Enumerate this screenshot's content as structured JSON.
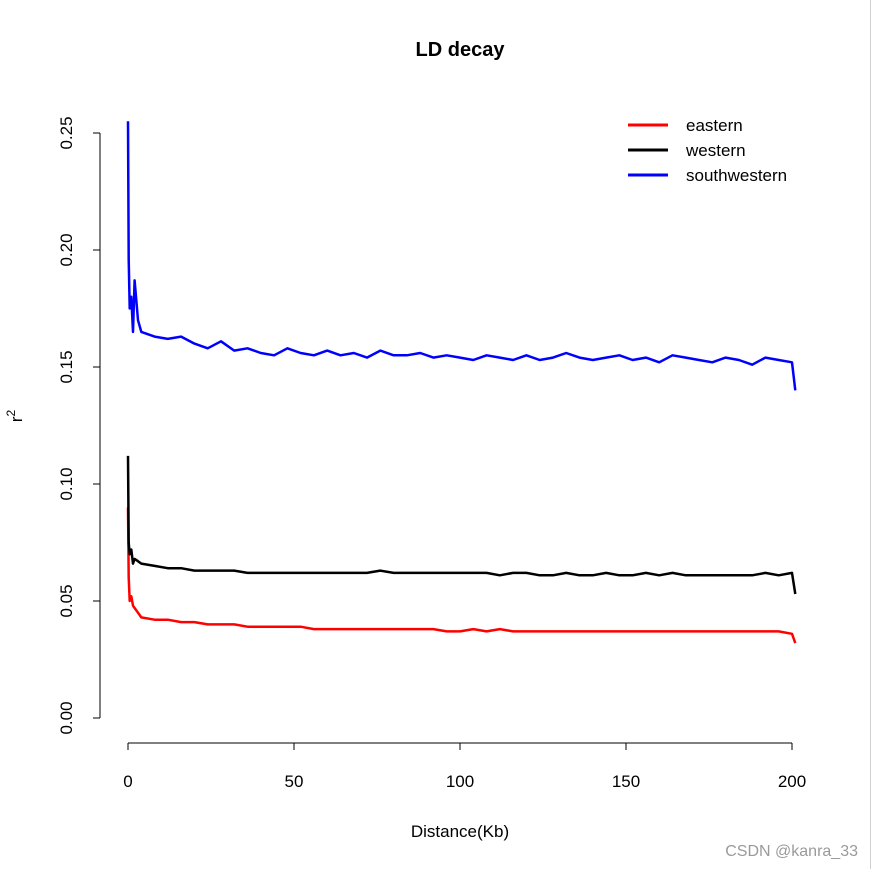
{
  "chart_data": {
    "type": "line",
    "title": "LD decay",
    "xlabel": "Distance(Kb)",
    "ylabel": "r2",
    "xlim": [
      0,
      200
    ],
    "ylim": [
      0,
      0.25
    ],
    "xticks": [
      "0",
      "50",
      "100",
      "150",
      "200"
    ],
    "yticks": [
      "0.00",
      "0.05",
      "0.10",
      "0.15",
      "0.20",
      "0.25"
    ],
    "grid": false,
    "legend_position": "top-right",
    "x": [
      0,
      0.2,
      0.5,
      1,
      1.5,
      2,
      3,
      4,
      8,
      12,
      16,
      20,
      24,
      28,
      32,
      36,
      40,
      44,
      48,
      52,
      56,
      60,
      64,
      68,
      72,
      76,
      80,
      84,
      88,
      92,
      96,
      100,
      104,
      108,
      112,
      116,
      120,
      124,
      128,
      132,
      136,
      140,
      144,
      148,
      152,
      156,
      160,
      164,
      168,
      172,
      176,
      180,
      184,
      188,
      192,
      196,
      200,
      201
    ],
    "series": [
      {
        "name": "eastern",
        "color": "#ff0000",
        "values": [
          0.09,
          0.06,
          0.05,
          0.052,
          0.048,
          0.047,
          0.045,
          0.043,
          0.042,
          0.042,
          0.041,
          0.041,
          0.04,
          0.04,
          0.04,
          0.039,
          0.039,
          0.039,
          0.039,
          0.039,
          0.038,
          0.038,
          0.038,
          0.038,
          0.038,
          0.038,
          0.038,
          0.038,
          0.038,
          0.038,
          0.037,
          0.037,
          0.038,
          0.037,
          0.038,
          0.037,
          0.037,
          0.037,
          0.037,
          0.037,
          0.037,
          0.037,
          0.037,
          0.037,
          0.037,
          0.037,
          0.037,
          0.037,
          0.037,
          0.037,
          0.037,
          0.037,
          0.037,
          0.037,
          0.037,
          0.037,
          0.036,
          0.032
        ]
      },
      {
        "name": "western",
        "color": "#000000",
        "values": [
          0.112,
          0.075,
          0.07,
          0.072,
          0.066,
          0.068,
          0.067,
          0.066,
          0.065,
          0.064,
          0.064,
          0.063,
          0.063,
          0.063,
          0.063,
          0.062,
          0.062,
          0.062,
          0.062,
          0.062,
          0.062,
          0.062,
          0.062,
          0.062,
          0.062,
          0.063,
          0.062,
          0.062,
          0.062,
          0.062,
          0.062,
          0.062,
          0.062,
          0.062,
          0.061,
          0.062,
          0.062,
          0.061,
          0.061,
          0.062,
          0.061,
          0.061,
          0.062,
          0.061,
          0.061,
          0.062,
          0.061,
          0.062,
          0.061,
          0.061,
          0.061,
          0.061,
          0.061,
          0.061,
          0.062,
          0.061,
          0.062,
          0.053
        ]
      },
      {
        "name": "southwestern",
        "color": "#0000ff",
        "values": [
          0.255,
          0.196,
          0.175,
          0.18,
          0.165,
          0.187,
          0.17,
          0.165,
          0.163,
          0.162,
          0.163,
          0.16,
          0.158,
          0.161,
          0.157,
          0.158,
          0.156,
          0.155,
          0.158,
          0.156,
          0.155,
          0.157,
          0.155,
          0.156,
          0.154,
          0.157,
          0.155,
          0.155,
          0.156,
          0.154,
          0.155,
          0.154,
          0.153,
          0.155,
          0.154,
          0.153,
          0.155,
          0.153,
          0.154,
          0.156,
          0.154,
          0.153,
          0.154,
          0.155,
          0.153,
          0.154,
          0.152,
          0.155,
          0.154,
          0.153,
          0.152,
          0.154,
          0.153,
          0.151,
          0.154,
          0.153,
          0.152,
          0.14
        ]
      }
    ]
  },
  "watermark": "CSDN @kanra_33"
}
